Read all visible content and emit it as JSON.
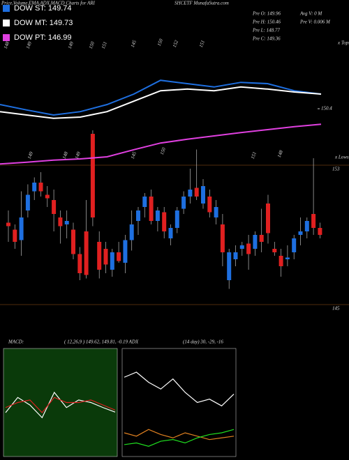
{
  "chart_data": [
    {
      "type": "candlestick",
      "title": "Price,Volume,EMA,ADX,MACD Charts for ARI",
      "subtitle": "SHCETF MunafaSutra.com",
      "info": [
        "Pre  O: 149.96",
        "Pre  H: 150.46",
        "Pre  L: 148.77",
        "Pre  C: 149.36",
        "Avg V: 0  M",
        "Pre  V: 0.006  M"
      ],
      "tops_label": "x Tops",
      "lows_label": "x Lows",
      "tops": [
        "148",
        "149",
        "149",
        "150",
        "151",
        "145",
        "150",
        "152",
        "151"
      ],
      "lows": [
        "149",
        "148",
        "149",
        "145",
        "150",
        "151",
        "148"
      ],
      "ylim": [
        144.88,
        162.48
      ],
      "yticks": [
        153,
        145
      ],
      "up_color": "#1e6fe0",
      "down_color": "#e02020",
      "ohlc": [
        [
          149.7,
          150.4,
          148.6,
          149.5
        ],
        [
          149.3,
          149.6,
          148.2,
          148.6
        ],
        [
          148.7,
          151.5,
          147.8,
          150.0
        ],
        [
          150.4,
          151.9,
          150.0,
          151.3
        ],
        [
          151.5,
          152.3,
          151.0,
          152.0
        ],
        [
          152.0,
          152.6,
          151.2,
          151.5
        ],
        [
          151.3,
          151.8,
          150.6,
          151.1
        ],
        [
          151.0,
          151.6,
          149.2,
          150.2
        ],
        [
          150.0,
          150.4,
          148.5,
          149.5
        ],
        [
          149.6,
          150.4,
          148.8,
          149.8
        ],
        [
          149.3,
          149.7,
          147.6,
          147.9
        ],
        [
          147.9,
          148.3,
          146.4,
          146.8
        ],
        [
          149.2,
          151.0,
          146.5,
          146.7
        ],
        [
          154.8,
          155.0,
          149.5,
          150.0
        ],
        [
          148.6,
          149.2,
          146.5,
          147.0
        ],
        [
          148.2,
          148.6,
          146.8,
          147.3
        ],
        [
          147.0,
          148.2,
          146.6,
          148.0
        ],
        [
          148.0,
          148.6,
          147.4,
          147.5
        ],
        [
          147.4,
          149.0,
          146.8,
          148.7
        ],
        [
          148.7,
          150.4,
          148.1,
          149.6
        ],
        [
          149.8,
          150.6,
          149.0,
          150.4
        ],
        [
          150.6,
          151.4,
          150.0,
          151.2
        ],
        [
          151.2,
          151.6,
          149.6,
          149.8
        ],
        [
          149.8,
          150.6,
          149.2,
          150.4
        ],
        [
          150.3,
          150.6,
          148.8,
          149.2
        ],
        [
          148.8,
          149.6,
          148.4,
          149.4
        ],
        [
          149.4,
          150.6,
          149.1,
          150.4
        ],
        [
          150.5,
          151.5,
          150.2,
          151.2
        ],
        [
          151.2,
          152.8,
          150.8,
          151.6
        ],
        [
          151.7,
          153.9,
          151.0,
          151.2
        ],
        [
          150.8,
          152.2,
          150.5,
          151.8
        ],
        [
          151.2,
          151.6,
          150.0,
          150.3
        ],
        [
          150.0,
          151.0,
          149.6,
          150.6
        ],
        [
          149.6,
          150.2,
          147.2,
          148.0
        ],
        [
          146.4,
          148.2,
          145.9,
          148.0
        ],
        [
          147.6,
          148.4,
          147.2,
          148.0
        ],
        [
          148.2,
          148.6,
          147.8,
          148.4
        ],
        [
          148.5,
          149.0,
          147.0,
          147.9
        ],
        [
          148.2,
          149.2,
          147.8,
          149.0
        ],
        [
          149.0,
          150.5,
          148.0,
          148.6
        ],
        [
          150.8,
          151.3,
          148.5,
          149.1
        ],
        [
          148.2,
          148.6,
          147.8,
          148.0
        ],
        [
          147.8,
          148.2,
          146.6,
          147.2
        ],
        [
          147.6,
          148.4,
          147.2,
          147.7
        ],
        [
          148.0,
          149.0,
          147.6,
          148.8
        ],
        [
          149.0,
          150.0,
          148.4,
          149.2
        ],
        [
          149.2,
          150.0,
          148.8,
          149.8
        ],
        [
          150.2,
          153.4,
          149.0,
          149.4
        ],
        [
          149.4,
          149.7,
          148.8,
          149.0
        ]
      ]
    },
    {
      "type": "line",
      "ylim": [
        149,
        151.5
      ],
      "yticks": [
        150.4
      ],
      "series": [
        {
          "name": "DOW ST: 149.74",
          "color": "#1e6fe0",
          "values": [
            150.5,
            150.37,
            150.25,
            150.33,
            150.5,
            150.75,
            151.08,
            151.0,
            150.92,
            151.03,
            151.0,
            150.83,
            150.75
          ]
        },
        {
          "name": "DOW MT: 149.73",
          "color": "#ffffff",
          "values": [
            150.33,
            150.25,
            150.17,
            150.2,
            150.33,
            150.58,
            150.83,
            150.87,
            150.83,
            150.92,
            150.87,
            150.8,
            150.75
          ]
        },
        {
          "name": "DOW PT: 146.99",
          "color": "#e040e0",
          "values": [
            149.08,
            149.12,
            149.17,
            149.2,
            149.25,
            149.42,
            149.58,
            149.67,
            149.75,
            149.83,
            149.9,
            149.97,
            150.03
          ]
        }
      ]
    },
    {
      "type": "line",
      "title": "MACD:",
      "subtitle": "( 12,26,9 ) 149.62, 149.81, -0.19 ADX",
      "ylim": [
        -1,
        1
      ],
      "series": [
        {
          "color": "#ffffff",
          "values": [
            -0.2,
            0.1,
            -0.05,
            -0.3,
            0.2,
            -0.1,
            0.05,
            0.0,
            -0.1,
            -0.19
          ]
        },
        {
          "color": "#e02020",
          "values": [
            -0.1,
            0.0,
            0.05,
            -0.2,
            0.1,
            0.0,
            0.0,
            0.05,
            -0.05,
            -0.15
          ]
        }
      ]
    },
    {
      "type": "line",
      "title": "(14 day) 30, -29, -16",
      "ylim": [
        0,
        60
      ],
      "series": [
        {
          "color": "#ffffff",
          "values": [
            45,
            48,
            42,
            38,
            44,
            36,
            30,
            32,
            28,
            35
          ]
        },
        {
          "color": "#e08020",
          "values": [
            12,
            10,
            14,
            11,
            9,
            12,
            10,
            8,
            9,
            10
          ]
        },
        {
          "color": "#20e020",
          "values": [
            5,
            6,
            4,
            7,
            8,
            6,
            9,
            11,
            12,
            14
          ]
        }
      ]
    }
  ]
}
